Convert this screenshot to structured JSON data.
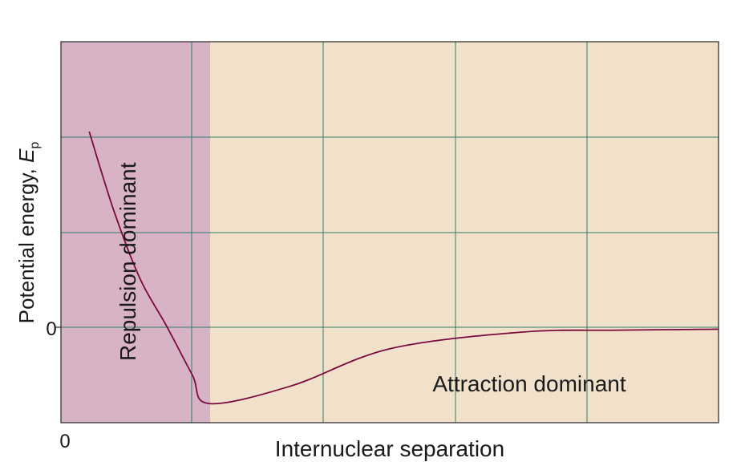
{
  "chart_data": {
    "type": "line",
    "title": "",
    "xlabel": "Internuclear separation",
    "ylabel_main": "Potential energy, ",
    "ylabel_symbol": "E",
    "ylabel_subscript": "p",
    "x_tick_labels": [
      "0"
    ],
    "y_tick_labels": [
      "0"
    ],
    "grid": true,
    "axis_values_shown": false,
    "regions": [
      {
        "label": "Repulsion dominant",
        "color": "#d8b3c6"
      },
      {
        "label": "Attraction dominant",
        "color": "#f1e1cb"
      }
    ],
    "colors": {
      "curve": "#7a0a3c",
      "grid": "#2e7d6a",
      "axis": "#333333"
    },
    "series": [
      {
        "x": [
          0.043,
          0.08,
          0.12,
          0.16,
          0.2,
          0.225,
          0.35,
          0.5,
          0.7,
          0.85,
          1.0
        ],
        "y": [
          2.0,
          1.2,
          0.5,
          0.02,
          -0.49,
          -0.78,
          -0.6,
          -0.22,
          -0.05,
          -0.03,
          -0.02
        ]
      }
    ]
  }
}
